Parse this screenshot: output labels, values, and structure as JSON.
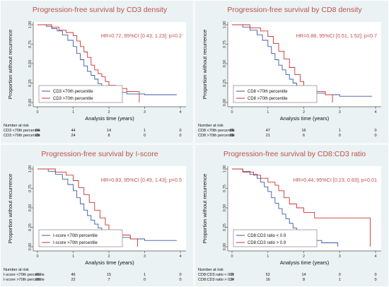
{
  "figure": {
    "background": "#eaf2f3",
    "plot_bg": "#ffffff",
    "title_color": "#c0504d",
    "hr_color": "#c0504d",
    "tick_color": "#333333"
  },
  "chart_data": [
    {
      "type": "line",
      "step": true,
      "title": "Progression-free survival by CD3 density",
      "hr_text": "HR=0.72, 95%CI [0.43, 1.23]; p=0.2",
      "xlabel": "Analysis time (years)",
      "ylabel": "Proportion without recurrence",
      "xlim": [
        0,
        4
      ],
      "ylim": [
        0,
        1
      ],
      "x_ticks": [
        "0",
        "1",
        "2",
        "3",
        "4"
      ],
      "y_ticks": [
        "0.00",
        "0.25",
        "0.50",
        "0.75",
        "1.00"
      ],
      "series": [
        {
          "name": "CD3 <70th percentile",
          "color": "#3a5aa6",
          "points": [
            [
              0,
              1.0
            ],
            [
              0.25,
              0.98
            ],
            [
              0.4,
              0.95
            ],
            [
              0.55,
              0.92
            ],
            [
              0.7,
              0.87
            ],
            [
              0.85,
              0.8
            ],
            [
              1.0,
              0.72
            ],
            [
              1.1,
              0.63
            ],
            [
              1.2,
              0.55
            ],
            [
              1.3,
              0.47
            ],
            [
              1.4,
              0.4
            ],
            [
              1.5,
              0.35
            ],
            [
              1.6,
              0.3
            ],
            [
              1.7,
              0.24
            ],
            [
              1.8,
              0.2
            ],
            [
              1.9,
              0.17
            ],
            [
              2.0,
              0.15
            ],
            [
              2.2,
              0.13
            ],
            [
              2.5,
              0.11
            ],
            [
              3.0,
              0.1
            ],
            [
              3.9,
              0.1
            ]
          ]
        },
        {
          "name": "CD3 >70th percentile",
          "color": "#d03030",
          "points": [
            [
              0,
              1.0
            ],
            [
              0.4,
              0.97
            ],
            [
              0.6,
              0.93
            ],
            [
              0.8,
              0.9
            ],
            [
              1.0,
              0.86
            ],
            [
              1.1,
              0.79
            ],
            [
              1.2,
              0.72
            ],
            [
              1.3,
              0.65
            ],
            [
              1.4,
              0.58
            ],
            [
              1.5,
              0.48
            ],
            [
              1.6,
              0.42
            ],
            [
              1.7,
              0.37
            ],
            [
              1.8,
              0.33
            ],
            [
              1.9,
              0.27
            ],
            [
              2.0,
              0.22
            ],
            [
              2.2,
              0.18
            ],
            [
              2.5,
              0.14
            ],
            [
              2.85,
              0.14
            ],
            [
              2.85,
              0.0
            ]
          ]
        }
      ],
      "legend_placement": "bottom-left",
      "risk_table": {
        "header": "Number at risk",
        "rows": [
          {
            "label": "CD3 <70th percentile",
            "values": [
              "64",
              "44",
              "14",
              "1",
              "0"
            ]
          },
          {
            "label": "CD3 >70th percentile",
            "values": [
              "29",
              "24",
              "8",
              "0",
              "0"
            ]
          }
        ]
      }
    },
    {
      "type": "line",
      "step": true,
      "title": "Progression-free survival by CD8 density",
      "hr_text": "HR=0.88, 95%CI [0.51, 1.52]; p=0.7",
      "xlabel": "Analysis time (years)",
      "ylabel": "Proportion without recurrence",
      "xlim": [
        0,
        4
      ],
      "ylim": [
        0,
        1
      ],
      "x_ticks": [
        "0",
        "1",
        "2",
        "3",
        "4"
      ],
      "y_ticks": [
        "0.00",
        "0.25",
        "0.50",
        "0.75",
        "1.00"
      ],
      "series": [
        {
          "name": "CD8 <70th percentile",
          "color": "#3a5aa6",
          "points": [
            [
              0,
              1.0
            ],
            [
              0.3,
              0.97
            ],
            [
              0.5,
              0.93
            ],
            [
              0.7,
              0.87
            ],
            [
              0.85,
              0.8
            ],
            [
              1.0,
              0.72
            ],
            [
              1.1,
              0.63
            ],
            [
              1.2,
              0.55
            ],
            [
              1.3,
              0.48
            ],
            [
              1.4,
              0.42
            ],
            [
              1.5,
              0.36
            ],
            [
              1.6,
              0.3
            ],
            [
              1.7,
              0.25
            ],
            [
              1.8,
              0.2
            ],
            [
              1.9,
              0.17
            ],
            [
              2.0,
              0.15
            ],
            [
              2.3,
              0.12
            ],
            [
              2.6,
              0.1
            ],
            [
              3.0,
              0.08
            ],
            [
              3.9,
              0.08
            ]
          ]
        },
        {
          "name": "CD8 >70th percentile",
          "color": "#d03030",
          "points": [
            [
              0,
              1.0
            ],
            [
              0.5,
              0.96
            ],
            [
              0.8,
              0.92
            ],
            [
              1.0,
              0.85
            ],
            [
              1.15,
              0.76
            ],
            [
              1.3,
              0.66
            ],
            [
              1.45,
              0.56
            ],
            [
              1.6,
              0.45
            ],
            [
              1.75,
              0.36
            ],
            [
              1.9,
              0.27
            ],
            [
              2.0,
              0.2
            ],
            [
              2.2,
              0.14
            ],
            [
              2.6,
              0.1
            ],
            [
              2.8,
              0.1
            ],
            [
              2.8,
              0.0
            ]
          ]
        }
      ],
      "legend_placement": "bottom-left",
      "risk_table": {
        "header": "Number at risk",
        "rows": [
          {
            "label": "CD8 <70th percentile",
            "values": [
              "65",
              "47",
              "16",
              "1",
              "0"
            ]
          },
          {
            "label": "CD8 >70th percentile",
            "values": [
              "28",
              "21",
              "6",
              "0",
              "0"
            ]
          }
        ]
      }
    },
    {
      "type": "line",
      "step": true,
      "title": "Progression-free survival by I-score",
      "hr_text": "HR=0.83, 95%CI [0.49, 1.43]; p=0.5",
      "xlabel": "Analysis time (years)",
      "ylabel": "Proportion without recurrence",
      "xlim": [
        0,
        4
      ],
      "ylim": [
        0,
        1
      ],
      "x_ticks": [
        "0",
        "1",
        "2",
        "3",
        "4"
      ],
      "y_ticks": [
        "0.00",
        "0.25",
        "0.50",
        "0.75",
        "1.00"
      ],
      "series": [
        {
          "name": "I-score <70th percentile",
          "color": "#3a5aa6",
          "points": [
            [
              0,
              1.0
            ],
            [
              0.3,
              0.97
            ],
            [
              0.5,
              0.93
            ],
            [
              0.7,
              0.87
            ],
            [
              0.85,
              0.8
            ],
            [
              1.0,
              0.72
            ],
            [
              1.1,
              0.63
            ],
            [
              1.2,
              0.55
            ],
            [
              1.3,
              0.47
            ],
            [
              1.4,
              0.4
            ],
            [
              1.5,
              0.34
            ],
            [
              1.6,
              0.29
            ],
            [
              1.7,
              0.24
            ],
            [
              1.8,
              0.2
            ],
            [
              1.9,
              0.17
            ],
            [
              2.0,
              0.15
            ],
            [
              2.3,
              0.12
            ],
            [
              2.6,
              0.1
            ],
            [
              3.0,
              0.08
            ],
            [
              3.9,
              0.08
            ]
          ]
        },
        {
          "name": "I-score >70th percentile",
          "color": "#d03030",
          "points": [
            [
              0,
              1.0
            ],
            [
              0.5,
              0.96
            ],
            [
              0.8,
              0.92
            ],
            [
              1.0,
              0.85
            ],
            [
              1.15,
              0.76
            ],
            [
              1.3,
              0.67
            ],
            [
              1.45,
              0.57
            ],
            [
              1.6,
              0.47
            ],
            [
              1.75,
              0.37
            ],
            [
              1.9,
              0.28
            ],
            [
              2.0,
              0.21
            ],
            [
              2.2,
              0.15
            ],
            [
              2.6,
              0.1
            ],
            [
              2.8,
              0.1
            ],
            [
              2.8,
              0.0
            ]
          ]
        }
      ],
      "legend_placement": "bottom-left",
      "risk_table": {
        "header": "Number at risk",
        "rows": [
          {
            "label": "I-score <70th percentile",
            "values": [
              "65",
              "46",
              "15",
              "1",
              "0"
            ]
          },
          {
            "label": "I-score >70th percentile",
            "values": [
              "28",
              "22",
              "7",
              "0",
              "0"
            ]
          }
        ]
      }
    },
    {
      "type": "line",
      "step": true,
      "title": "Progression-free survival by CD8:CD3 ratio",
      "hr_text": "HR=0.44, 95%CI [0.23, 0.83]; p=0.01",
      "xlabel": "Analysis time (years)",
      "ylabel": "Proportion without recurrence",
      "xlim": [
        0,
        4
      ],
      "ylim": [
        0,
        1
      ],
      "x_ticks": [
        "0",
        "1",
        "2",
        "3",
        "4"
      ],
      "y_ticks": [
        "0.00",
        "0.25",
        "0.50",
        "0.75",
        "1.00"
      ],
      "series": [
        {
          "name": "CD8:CD3 ratio < 0.9",
          "color": "#3a5aa6",
          "points": [
            [
              0,
              1.0
            ],
            [
              0.3,
              0.97
            ],
            [
              0.5,
              0.93
            ],
            [
              0.7,
              0.88
            ],
            [
              0.8,
              0.83
            ],
            [
              0.9,
              0.77
            ],
            [
              1.0,
              0.71
            ],
            [
              1.1,
              0.63
            ],
            [
              1.2,
              0.56
            ],
            [
              1.3,
              0.49
            ],
            [
              1.4,
              0.42
            ],
            [
              1.5,
              0.36
            ],
            [
              1.6,
              0.3
            ],
            [
              1.7,
              0.24
            ],
            [
              1.8,
              0.19
            ],
            [
              1.9,
              0.14
            ],
            [
              2.0,
              0.11
            ],
            [
              2.2,
              0.08
            ],
            [
              2.5,
              0.05
            ],
            [
              2.95,
              0.05
            ],
            [
              2.95,
              0.0
            ]
          ]
        },
        {
          "name": "CD8:CD3 ratio > 0.9",
          "color": "#d03030",
          "points": [
            [
              0,
              1.0
            ],
            [
              0.3,
              0.96
            ],
            [
              0.6,
              0.92
            ],
            [
              0.8,
              0.88
            ],
            [
              1.0,
              0.83
            ],
            [
              1.2,
              0.79
            ],
            [
              1.3,
              0.72
            ],
            [
              1.45,
              0.63
            ],
            [
              1.6,
              0.55
            ],
            [
              1.8,
              0.5
            ],
            [
              2.0,
              0.44
            ],
            [
              2.3,
              0.37
            ],
            [
              3.85,
              0.37
            ],
            [
              3.85,
              0.0
            ]
          ]
        }
      ],
      "legend_placement": "bottom-left",
      "risk_table": {
        "header": "Number at risk",
        "rows": [
          {
            "label": "CD8:CD3 ratio < 0.9",
            "values": [
              "69",
              "52",
              "14",
              "0",
              "0"
            ]
          },
          {
            "label": "CD8:CD3 ratio > 0.9",
            "values": [
              "24",
              "16",
              "8",
              "1",
              "0"
            ]
          }
        ]
      }
    }
  ]
}
